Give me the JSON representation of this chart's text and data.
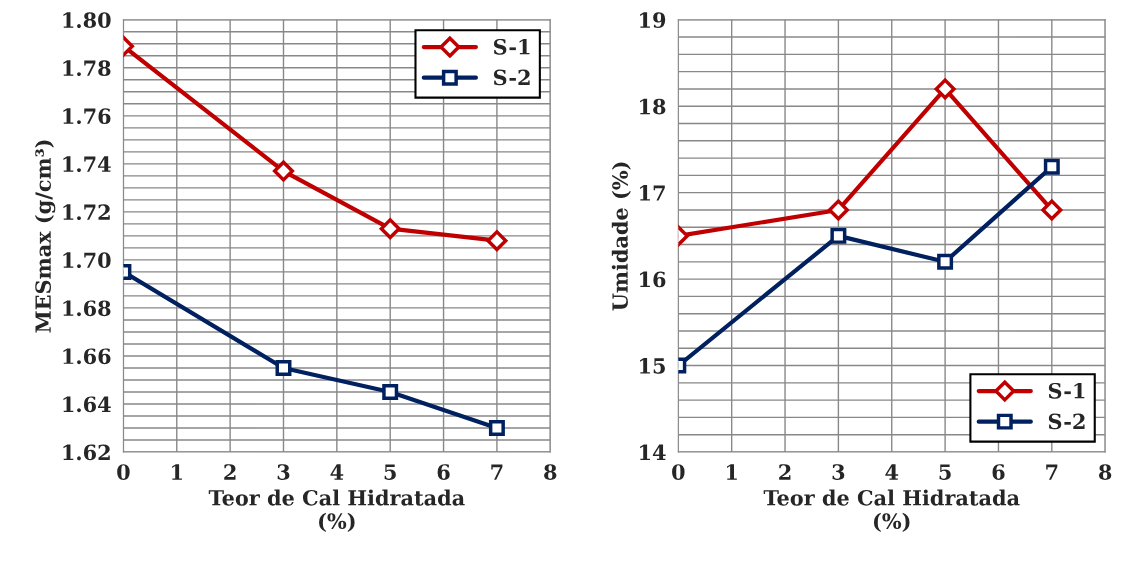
{
  "chart_data": [
    {
      "type": "line",
      "xlabel": "Teor de Cal Hidratada\n(%)",
      "ylabel": "MESmax (g/cm³)",
      "xlim": [
        0,
        8
      ],
      "xticks": [
        0,
        1,
        2,
        3,
        4,
        5,
        6,
        7,
        8
      ],
      "ylim": [
        1.62,
        1.8
      ],
      "yticks": [
        {
          "value": 1.62,
          "label": "1.62"
        },
        {
          "value": 1.64,
          "label": "1.64"
        },
        {
          "value": 1.66,
          "label": "1.66"
        },
        {
          "value": 1.68,
          "label": "1.68"
        },
        {
          "value": 1.7,
          "label": "1.70"
        },
        {
          "value": 1.72,
          "label": "1.72"
        },
        {
          "value": 1.74,
          "label": "1.74"
        },
        {
          "value": 1.76,
          "label": "1.76"
        },
        {
          "value": 1.78,
          "label": "1.78"
        },
        {
          "value": 1.8,
          "label": "1.80"
        }
      ],
      "grid": true,
      "legend": "top right",
      "x": [
        0,
        3,
        5,
        7
      ],
      "series": [
        {
          "name": "S-1",
          "color": "#c00000",
          "marker": "diamond",
          "values": [
            1.789,
            1.737,
            1.713,
            1.708
          ]
        },
        {
          "name": "S-2",
          "color": "#002060",
          "marker": "square",
          "values": [
            1.695,
            1.655,
            1.645,
            1.63
          ]
        }
      ]
    },
    {
      "type": "line",
      "xlabel": "Teor de Cal Hidratada\n(%)",
      "ylabel": "Umidade (%)",
      "xlim": [
        0,
        8
      ],
      "xticks": [
        0,
        1,
        2,
        3,
        4,
        5,
        6,
        7,
        8
      ],
      "ylim": [
        14,
        19
      ],
      "yticks": [
        14,
        15,
        16,
        17,
        18,
        19
      ],
      "grid": true,
      "legend": "bottom right",
      "x": [
        0,
        3,
        5,
        7
      ],
      "series": [
        {
          "name": "S-1",
          "color": "#c00000",
          "marker": "diamond",
          "values": [
            16.5,
            16.8,
            18.2,
            16.8
          ]
        },
        {
          "name": "S-2",
          "color": "#002060",
          "marker": "square",
          "values": [
            15.0,
            16.5,
            16.2,
            17.3
          ]
        }
      ]
    }
  ]
}
